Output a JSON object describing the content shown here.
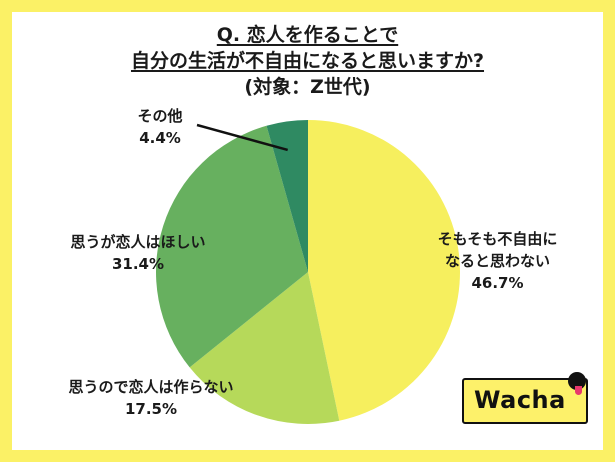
{
  "header": {
    "line1": "Q. 恋人を作ることで",
    "line2": "自分の生活が不自由になると思いますか?",
    "line3": "(対象：Z世代)"
  },
  "logo": {
    "text": "Wacha"
  },
  "chart_data": {
    "type": "pie",
    "title": "Q. 恋人を作ることで 自分の生活が不自由になると思いますか? (対象：Z世代)",
    "slices": [
      {
        "label_lines": [
          "そもそも不自由に",
          "なると思わない"
        ],
        "value": 46.7,
        "value_text": "46.7%",
        "color": "#f6ef5e"
      },
      {
        "label_lines": [
          "思うので恋人は作らない"
        ],
        "value": 17.5,
        "value_text": "17.5%",
        "color": "#b6d95a"
      },
      {
        "label_lines": [
          "思うが恋人はほしい"
        ],
        "value": 31.4,
        "value_text": "31.4%",
        "color": "#67b05f"
      },
      {
        "label_lines": [
          "その他"
        ],
        "value": 4.4,
        "value_text": "4.4%",
        "color": "#2f8a62"
      }
    ],
    "start": "12 o'clock",
    "direction": "clockwise"
  }
}
